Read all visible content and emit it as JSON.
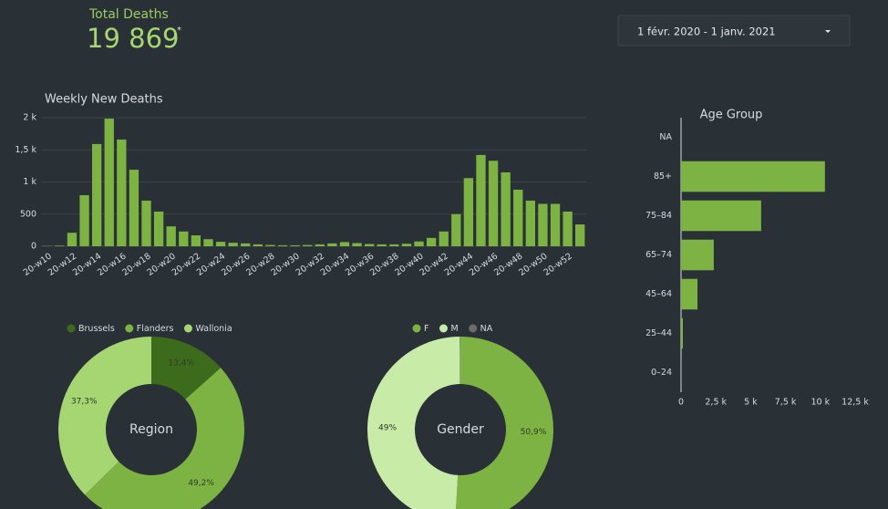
{
  "scorecard": {
    "label": "Total Deaths",
    "value": "19 869",
    "note": "*"
  },
  "date_range": "1 févr. 2020 - 1 janv. 2021",
  "chart_data": [
    {
      "type": "bar",
      "title": "Weekly New Deaths",
      "categories": [
        "20-w10",
        null,
        "20-w12",
        null,
        "20-w14",
        null,
        "20-w16",
        null,
        "20-w18",
        null,
        "20-w20",
        null,
        "20-w22",
        null,
        "20-w24",
        null,
        "20-w26",
        null,
        "20-w28",
        null,
        "20-w30",
        null,
        "20-w32",
        null,
        "20-w34",
        null,
        "20-w36",
        null,
        "20-w38",
        null,
        "20-w40",
        null,
        "20-w42",
        null,
        "20-w44",
        null,
        "20-w46",
        null,
        "20-w48",
        null,
        "20-w50",
        null,
        "20-w52",
        null
      ],
      "values": [
        5,
        10,
        210,
        795,
        1590,
        1985,
        1660,
        1190,
        710,
        540,
        310,
        230,
        170,
        110,
        70,
        55,
        45,
        30,
        20,
        15,
        15,
        20,
        30,
        45,
        65,
        50,
        35,
        30,
        30,
        40,
        75,
        130,
        230,
        500,
        1060,
        1420,
        1330,
        1150,
        880,
        710,
        660,
        660,
        540,
        340
      ],
      "color": "#7cb342",
      "ylim": [
        0,
        2000
      ],
      "yticks": [
        0,
        500,
        {
          "value": 1000,
          "label": "1 k"
        },
        {
          "value": 1500,
          "label": "1,5 k"
        },
        {
          "value": 2000,
          "label": "2 k"
        }
      ],
      "grid": true
    },
    {
      "type": "hbar",
      "title": "Age Group",
      "categories": [
        "NA",
        "85+",
        "75–84",
        "65–74",
        "45–64",
        "25–44",
        "0–24"
      ],
      "values": [
        0,
        10330,
        5750,
        2350,
        1180,
        130,
        5
      ],
      "color": "#7cb342",
      "xlim": [
        0,
        12500
      ],
      "xticks": [
        0,
        {
          "value": 2500,
          "label": "2,5 k"
        },
        {
          "value": 5000,
          "label": "5 k"
        },
        {
          "value": 7500,
          "label": "7,5 k"
        },
        {
          "value": 10000,
          "label": "10 k"
        },
        {
          "value": 12500,
          "label": "12,5 k"
        }
      ],
      "grid": false
    },
    {
      "type": "pie",
      "donut": true,
      "title": "Region",
      "categories": [
        "Brussels",
        "Flanders",
        "Wallonia"
      ],
      "values": [
        13.4,
        49.2,
        37.3
      ],
      "value_labels": [
        "13,4%",
        "49,2%",
        "37,3%"
      ],
      "colors": [
        "#3d6b1c",
        "#7cb342",
        "#a5d672"
      ]
    },
    {
      "type": "pie",
      "donut": true,
      "title": "Gender",
      "categories": [
        "F",
        "M",
        "NA"
      ],
      "values": [
        50.9,
        49,
        0.1
      ],
      "value_labels": [
        "50,9%",
        "49%",
        null
      ],
      "colors": [
        "#7cb342",
        "#c8eba8",
        "#6b6b6b"
      ]
    }
  ]
}
